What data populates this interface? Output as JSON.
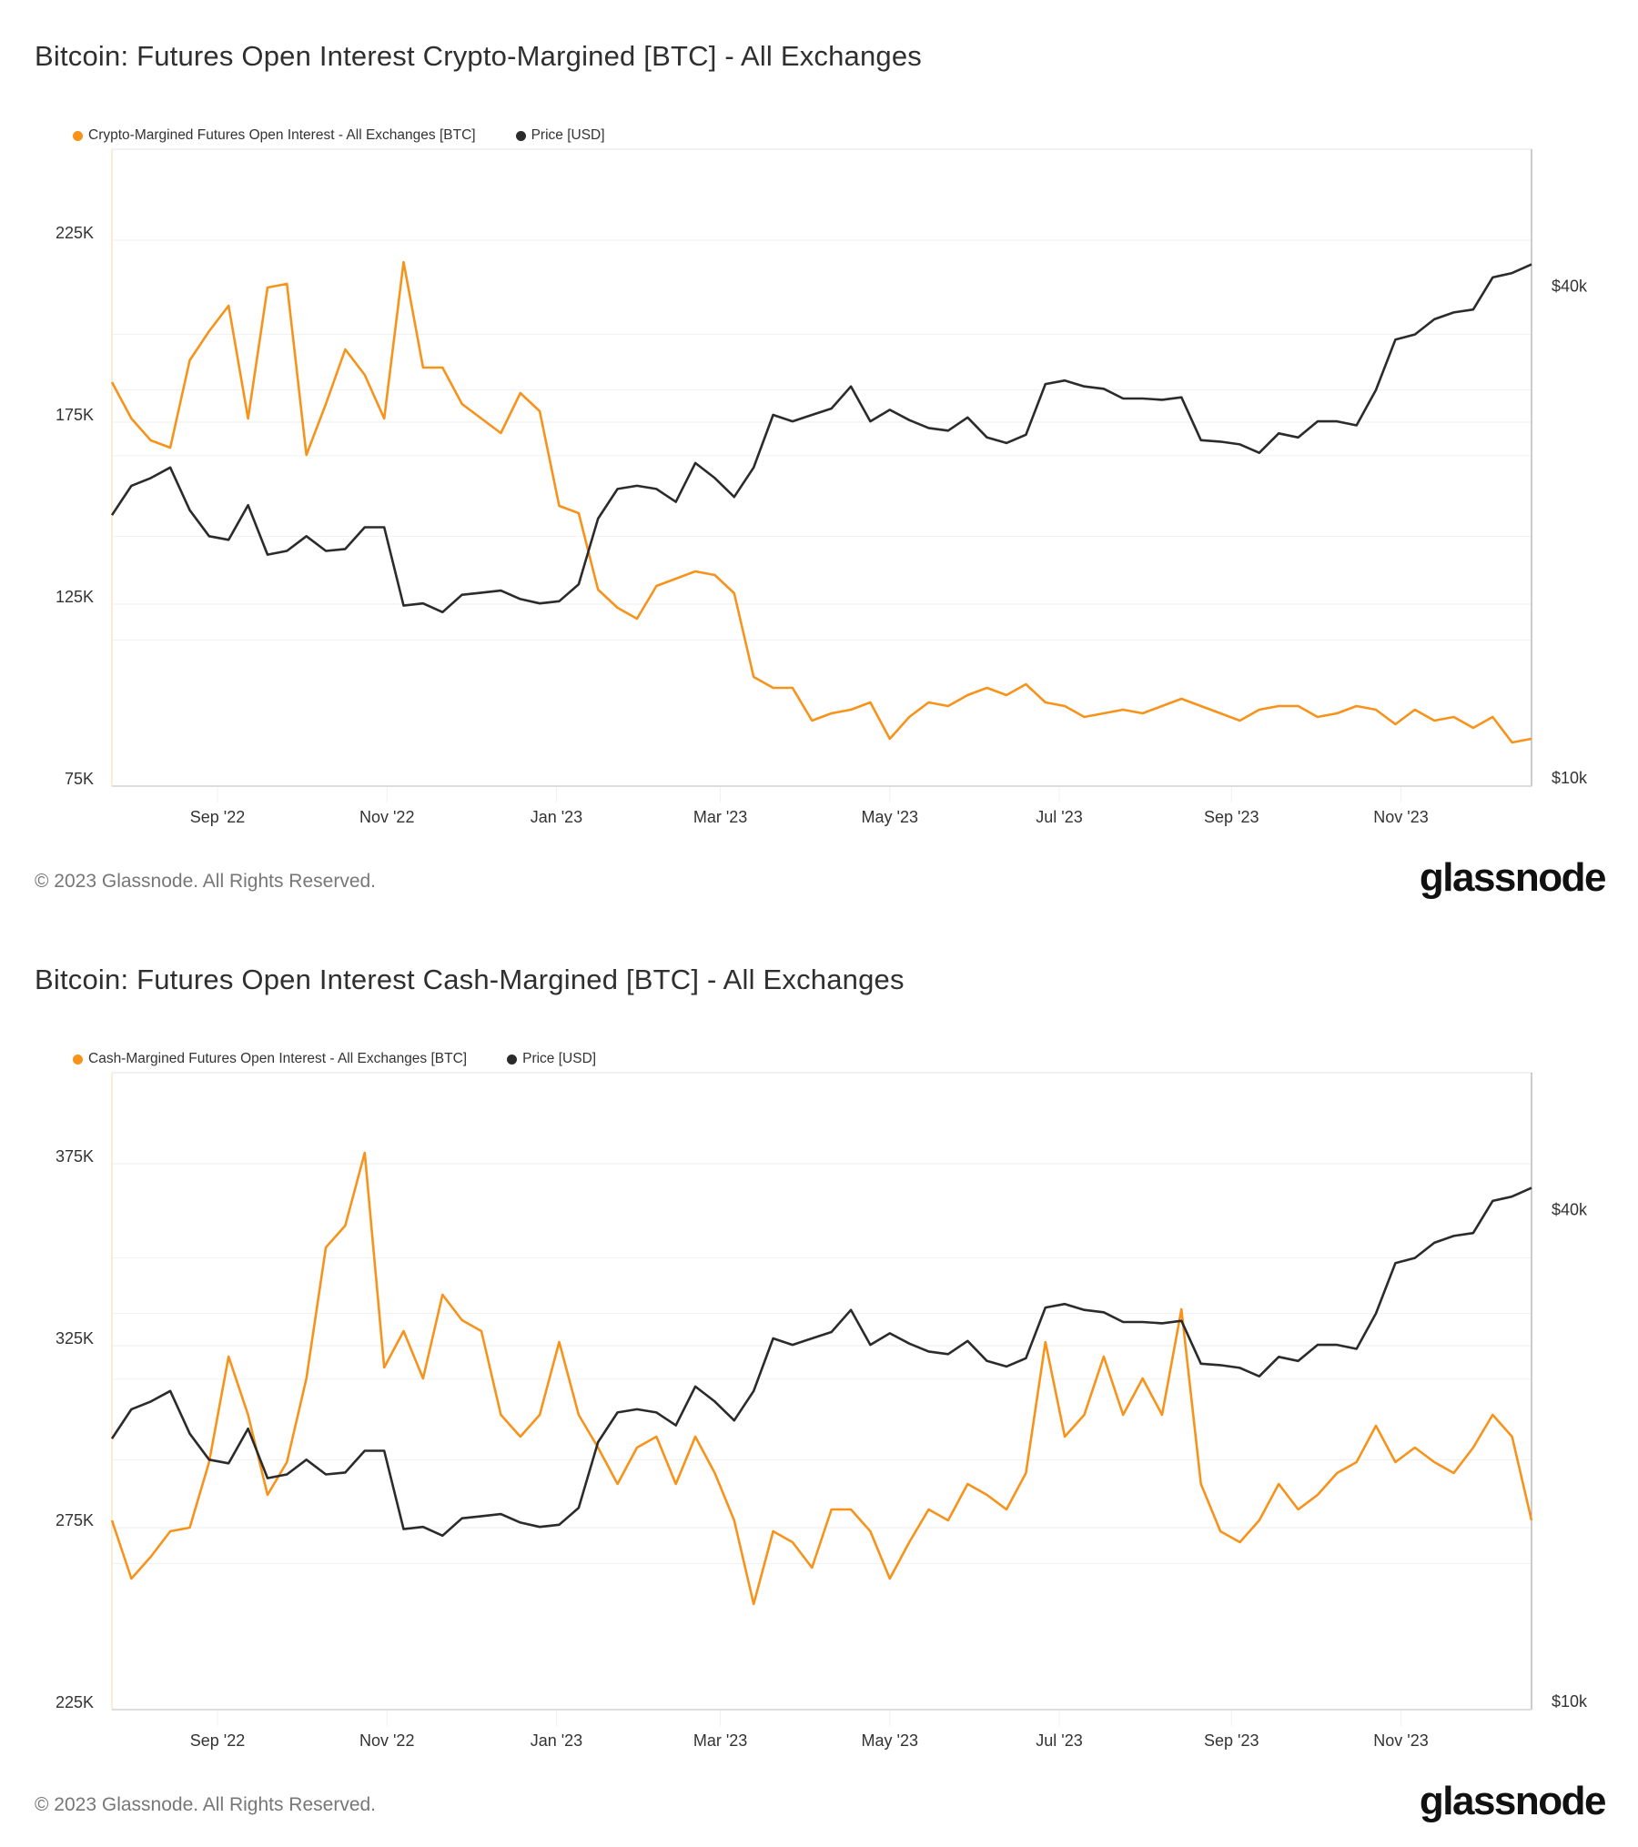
{
  "colors": {
    "oi": "#f7931a",
    "price": "#2b2b2b",
    "grid": "#ececec"
  },
  "chart_data": [
    {
      "type": "line",
      "title": "Bitcoin: Futures Open Interest Crypto-Margined [BTC] - All Exchanges",
      "copyright": "© 2023 Glassnode. All Rights Reserved.",
      "logo": "glassnode",
      "legend_position": "top-left",
      "x_ticks": [
        "Sep '22",
        "Nov '22",
        "Jan '23",
        "Mar '23",
        "May '23",
        "Jul '23",
        "Sep '23",
        "Nov '23"
      ],
      "x_tick_dates": [
        "2022-09-01",
        "2022-11-01",
        "2023-01-01",
        "2023-03-01",
        "2023-05-01",
        "2023-07-01",
        "2023-09-01",
        "2023-11-01"
      ],
      "xlim": [
        "2022-07-25",
        "2023-12-18"
      ],
      "y_left": {
        "ticks": [
          "75K",
          "125K",
          "175K",
          "225K"
        ],
        "tick_values": [
          75000,
          125000,
          175000,
          225000
        ],
        "ylim": [
          75000,
          250000
        ]
      },
      "y_right": {
        "ticks": [
          "$10k",
          "$40k"
        ],
        "tick_values": [
          10000,
          40000
        ],
        "ylim": [
          10000,
          58500
        ],
        "scale": "log"
      },
      "grid": true,
      "x": [
        "2022-07-25",
        "2022-08-01",
        "2022-08-08",
        "2022-08-15",
        "2022-08-22",
        "2022-08-29",
        "2022-09-05",
        "2022-09-12",
        "2022-09-19",
        "2022-09-26",
        "2022-10-03",
        "2022-10-10",
        "2022-10-17",
        "2022-10-24",
        "2022-10-31",
        "2022-11-07",
        "2022-11-14",
        "2022-11-21",
        "2022-11-28",
        "2022-12-05",
        "2022-12-12",
        "2022-12-19",
        "2022-12-26",
        "2023-01-02",
        "2023-01-09",
        "2023-01-16",
        "2023-01-23",
        "2023-01-30",
        "2023-02-06",
        "2023-02-13",
        "2023-02-20",
        "2023-02-27",
        "2023-03-06",
        "2023-03-13",
        "2023-03-20",
        "2023-03-27",
        "2023-04-03",
        "2023-04-10",
        "2023-04-17",
        "2023-04-24",
        "2023-05-01",
        "2023-05-08",
        "2023-05-15",
        "2023-05-22",
        "2023-05-29",
        "2023-06-05",
        "2023-06-12",
        "2023-06-19",
        "2023-06-26",
        "2023-07-03",
        "2023-07-10",
        "2023-07-17",
        "2023-07-24",
        "2023-07-31",
        "2023-08-07",
        "2023-08-14",
        "2023-08-21",
        "2023-08-28",
        "2023-09-04",
        "2023-09-11",
        "2023-09-18",
        "2023-09-25",
        "2023-10-02",
        "2023-10-09",
        "2023-10-16",
        "2023-10-23",
        "2023-10-30",
        "2023-11-06",
        "2023-11-13",
        "2023-11-20",
        "2023-11-27",
        "2023-12-04",
        "2023-12-11",
        "2023-12-18"
      ],
      "series": [
        {
          "name": "Crypto-Margined Futures Open Interest - All Exchanges [BTC]",
          "axis": "left",
          "values": [
            186000,
            176000,
            170000,
            168000,
            192000,
            200000,
            207000,
            176000,
            212000,
            213000,
            166000,
            180000,
            195000,
            188000,
            176000,
            219000,
            190000,
            190000,
            180000,
            176000,
            172000,
            183000,
            178000,
            152000,
            150000,
            129000,
            124000,
            121000,
            130000,
            132000,
            134000,
            133000,
            128000,
            105000,
            102000,
            102000,
            93000,
            95000,
            96000,
            98000,
            88000,
            94000,
            98000,
            97000,
            100000,
            102000,
            100000,
            103000,
            98000,
            97000,
            94000,
            95000,
            96000,
            95000,
            97000,
            99000,
            97000,
            95000,
            93000,
            96000,
            97000,
            97000,
            94000,
            95000,
            97000,
            96000,
            92000,
            96000,
            93000,
            94000,
            91000,
            94000,
            87000,
            88000
          ]
        },
        {
          "name": "Price [USD]",
          "axis": "right",
          "values": [
            21200,
            23000,
            23500,
            24200,
            21500,
            20000,
            19800,
            21800,
            19000,
            19200,
            20000,
            19200,
            19300,
            20500,
            20500,
            16500,
            16600,
            16200,
            17000,
            17100,
            17200,
            16800,
            16600,
            16700,
            17500,
            21000,
            22800,
            23000,
            22800,
            22000,
            24500,
            23500,
            22300,
            24200,
            28000,
            27500,
            28000,
            28500,
            30300,
            27500,
            28400,
            27600,
            27000,
            26800,
            27800,
            26300,
            25900,
            26500,
            30500,
            30800,
            30300,
            30100,
            29300,
            29300,
            29200,
            29400,
            26100,
            26000,
            25800,
            25200,
            26600,
            26300,
            27500,
            27500,
            27200,
            30000,
            34500,
            35000,
            36500,
            37200,
            37500,
            41000,
            41500,
            42500
          ]
        }
      ]
    },
    {
      "type": "line",
      "title": "Bitcoin: Futures Open Interest Cash-Margined [BTC] - All Exchanges",
      "copyright": "© 2023 Glassnode. All Rights Reserved.",
      "logo": "glassnode",
      "legend_position": "top-left",
      "x_ticks": [
        "Sep '22",
        "Nov '22",
        "Jan '23",
        "Mar '23",
        "May '23",
        "Jul '23",
        "Sep '23",
        "Nov '23"
      ],
      "x_tick_dates": [
        "2022-09-01",
        "2022-11-01",
        "2023-01-01",
        "2023-03-01",
        "2023-05-01",
        "2023-07-01",
        "2023-09-01",
        "2023-11-01"
      ],
      "xlim": [
        "2022-07-25",
        "2023-12-18"
      ],
      "y_left": {
        "ticks": [
          "225K",
          "275K",
          "325K",
          "375K"
        ],
        "tick_values": [
          225000,
          275000,
          325000,
          375000
        ],
        "ylim": [
          225000,
          400000
        ]
      },
      "y_right": {
        "ticks": [
          "$10k",
          "$40k"
        ],
        "tick_values": [
          10000,
          40000
        ],
        "ylim": [
          10000,
          58500
        ],
        "scale": "log"
      },
      "grid": true,
      "x": [
        "2022-07-25",
        "2022-08-01",
        "2022-08-08",
        "2022-08-15",
        "2022-08-22",
        "2022-08-29",
        "2022-09-05",
        "2022-09-12",
        "2022-09-19",
        "2022-09-26",
        "2022-10-03",
        "2022-10-10",
        "2022-10-17",
        "2022-10-24",
        "2022-10-31",
        "2022-11-07",
        "2022-11-14",
        "2022-11-21",
        "2022-11-28",
        "2022-12-05",
        "2022-12-12",
        "2022-12-19",
        "2022-12-26",
        "2023-01-02",
        "2023-01-09",
        "2023-01-16",
        "2023-01-23",
        "2023-01-30",
        "2023-02-06",
        "2023-02-13",
        "2023-02-20",
        "2023-02-27",
        "2023-03-06",
        "2023-03-13",
        "2023-03-20",
        "2023-03-27",
        "2023-04-03",
        "2023-04-10",
        "2023-04-17",
        "2023-04-24",
        "2023-05-01",
        "2023-05-08",
        "2023-05-15",
        "2023-05-22",
        "2023-05-29",
        "2023-06-05",
        "2023-06-12",
        "2023-06-19",
        "2023-06-26",
        "2023-07-03",
        "2023-07-10",
        "2023-07-17",
        "2023-07-24",
        "2023-07-31",
        "2023-08-07",
        "2023-08-14",
        "2023-08-21",
        "2023-08-28",
        "2023-09-04",
        "2023-09-11",
        "2023-09-18",
        "2023-09-25",
        "2023-10-02",
        "2023-10-09",
        "2023-10-16",
        "2023-10-23",
        "2023-10-30",
        "2023-11-06",
        "2023-11-13",
        "2023-11-20",
        "2023-11-27",
        "2023-12-04",
        "2023-12-11",
        "2023-12-18"
      ],
      "series": [
        {
          "name": "Cash-Margined Futures Open Interest - All Exchanges [BTC]",
          "axis": "left",
          "values": [
            277000,
            261000,
            267000,
            274000,
            275000,
            293000,
            322000,
            306000,
            284000,
            293000,
            316000,
            352000,
            358000,
            378000,
            319000,
            329000,
            316000,
            339000,
            332000,
            329000,
            306000,
            300000,
            306000,
            326000,
            306000,
            297000,
            287000,
            297000,
            300000,
            287000,
            300000,
            290000,
            277000,
            254000,
            274000,
            271000,
            264000,
            280000,
            280000,
            274000,
            261000,
            271000,
            280000,
            277000,
            287000,
            284000,
            280000,
            290000,
            326000,
            300000,
            306000,
            322000,
            306000,
            316000,
            306000,
            335000,
            287000,
            274000,
            271000,
            277000,
            287000,
            280000,
            284000,
            290000,
            293000,
            303000,
            293000,
            297000,
            293000,
            290000,
            297000,
            306000,
            300000,
            277000
          ]
        },
        {
          "name": "Price [USD]",
          "axis": "right",
          "values": [
            21200,
            23000,
            23500,
            24200,
            21500,
            20000,
            19800,
            21800,
            19000,
            19200,
            20000,
            19200,
            19300,
            20500,
            20500,
            16500,
            16600,
            16200,
            17000,
            17100,
            17200,
            16800,
            16600,
            16700,
            17500,
            21000,
            22800,
            23000,
            22800,
            22000,
            24500,
            23500,
            22300,
            24200,
            28000,
            27500,
            28000,
            28500,
            30300,
            27500,
            28400,
            27600,
            27000,
            26800,
            27800,
            26300,
            25900,
            26500,
            30500,
            30800,
            30300,
            30100,
            29300,
            29300,
            29200,
            29400,
            26100,
            26000,
            25800,
            25200,
            26600,
            26300,
            27500,
            27500,
            27200,
            30000,
            34500,
            35000,
            36500,
            37200,
            37500,
            41000,
            41500,
            42500
          ]
        }
      ]
    }
  ]
}
